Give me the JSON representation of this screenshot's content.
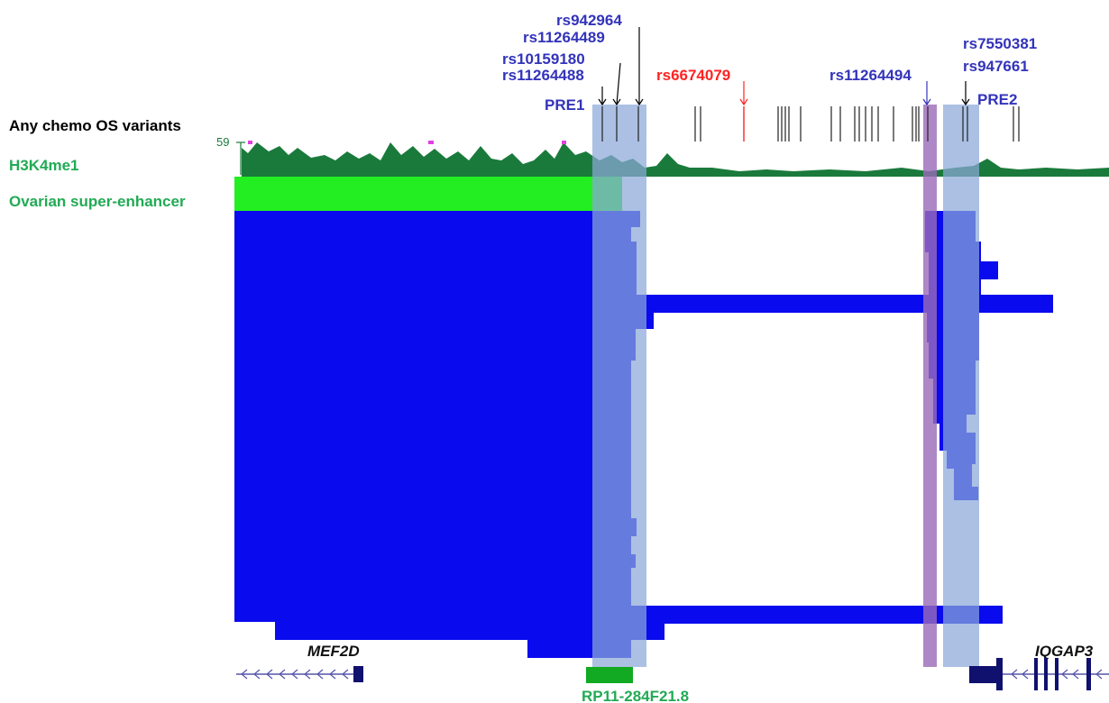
{
  "tracks": {
    "variants_label": "Any chemo OS variants",
    "h3k4me1_label": "H3K4me1",
    "h3k4me1_scale": "59",
    "superenhancer_label": "Ovarian super-enhancer"
  },
  "snp_labels": {
    "rs942964": "rs942964",
    "rs11264489": "rs11264489",
    "rs10159180": "rs10159180",
    "rs11264488": "rs11264488",
    "rs6674079": "rs6674079",
    "rs11264494": "rs11264494",
    "rs7550381": "rs7550381",
    "rs947661": "rs947661"
  },
  "regions": {
    "pre1": "PRE1",
    "pre2": "PRE2"
  },
  "genes": {
    "mef2d": "MEF2D",
    "iqgap3": "IQGAP3",
    "rp11": "RP11-284F21.8"
  },
  "colors": {
    "snp_label": "#3333bb",
    "highlight_snp": "#ff2222",
    "h3k4me1": "#1a7a3c",
    "superenhancer": "#22ee22",
    "interaction": "#0a0aee",
    "pre_band": "#7fa3d0",
    "purple_band": "#9a6ab8",
    "gene": "#10106e",
    "track_label_green": "#22aa55"
  }
}
